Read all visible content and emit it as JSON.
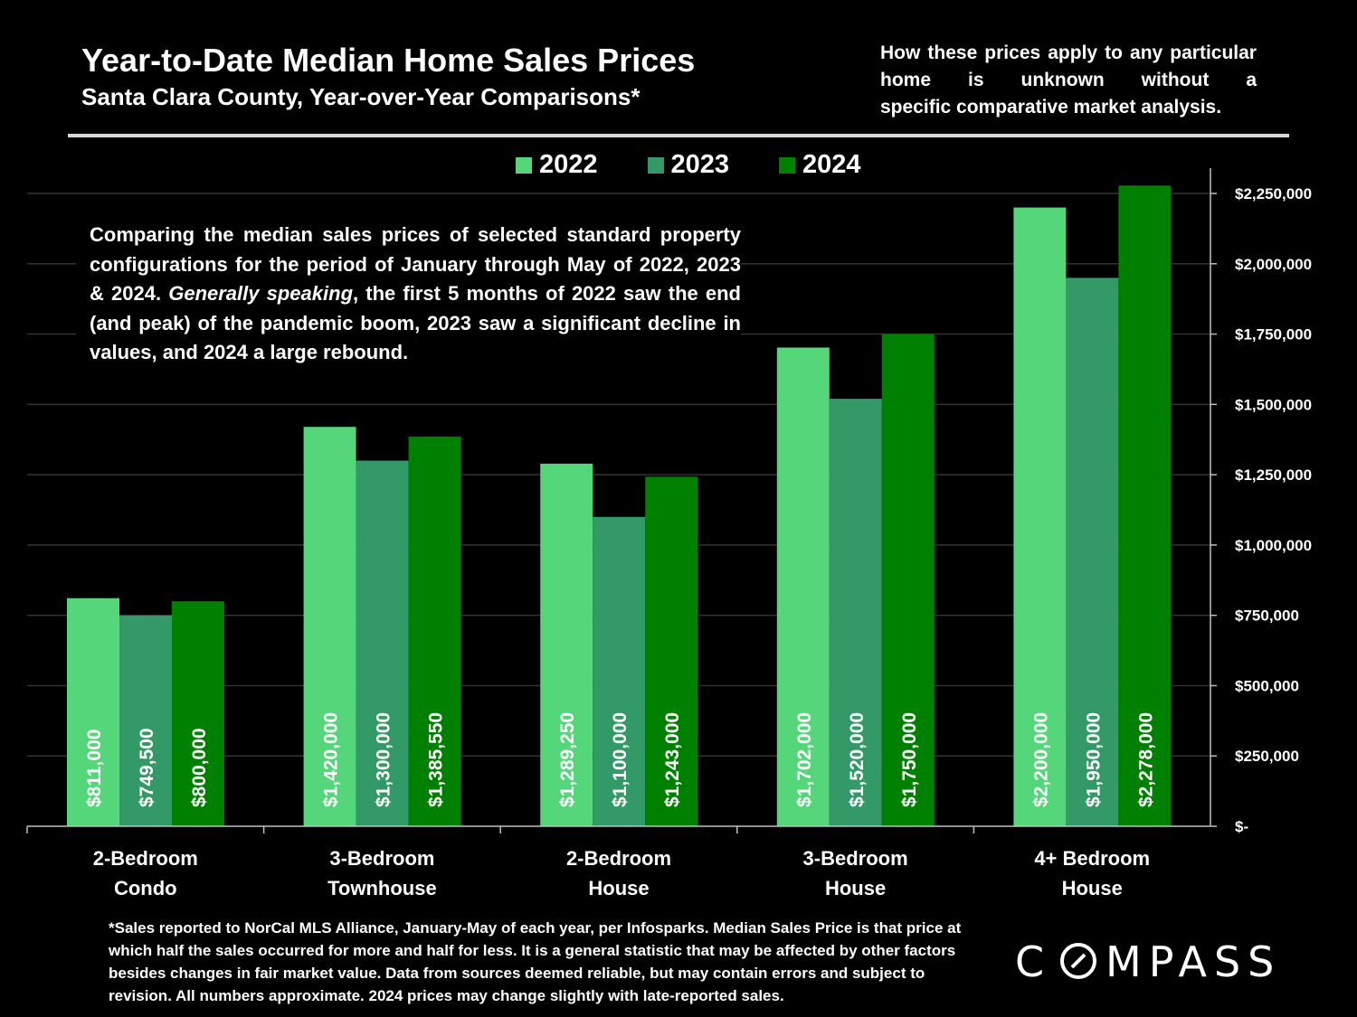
{
  "header": {
    "title": "Year-to-Date Median Home Sales Prices",
    "subtitle": "Santa Clara County, Year-over-Year Comparisons*",
    "disclaimer_lines": [
      "How these prices apply to any",
      "particular home is unknown without a",
      "specific comparative market analysis."
    ]
  },
  "intro": {
    "part1": "Comparing the median sales prices of selected standard property configurations for the period of January through May of 2022, 2023 & 2024. ",
    "italic": "Generally speaking",
    "part2": ", the first 5 months of 2022 saw the end (and peak) of the pandemic boom, 2023 saw a significant decline in values, and 2024 a large rebound."
  },
  "footnote": "*Sales reported to NorCal MLS Alliance, January-May of each year, per Infosparks. Median Sales Price is that price at which half the sales occurred for more and half for less. It is a general statistic that may be affected by other factors besides changes in fair market value. Data from sources deemed reliable, but may contain errors and subject to revision.  All numbers approximate. 2024 prices may change slightly with late-reported sales.",
  "logo": {
    "text": "COMPASS",
    "icon": "compass-logo"
  },
  "chart_data": {
    "type": "bar",
    "categories": [
      [
        "2-Bedroom",
        "Condo"
      ],
      [
        "3-Bedroom",
        "Townhouse"
      ],
      [
        "2-Bedroom",
        "House"
      ],
      [
        "3-Bedroom",
        "House"
      ],
      [
        "4+ Bedroom",
        "House"
      ]
    ],
    "series": [
      {
        "name": "2022",
        "color": "#55d67b",
        "values": [
          811000,
          1420000,
          1289250,
          1702000,
          2200000
        ],
        "labels": [
          "$811,000",
          "$1,420,000",
          "$1,289,250",
          "$1,702,000",
          "$2,200,000"
        ]
      },
      {
        "name": "2023",
        "color": "#339966",
        "values": [
          749500,
          1300000,
          1100000,
          1520000,
          1950000
        ],
        "labels": [
          "$749,500",
          "$1,300,000",
          "$1,100,000",
          "$1,520,000",
          "$1,950,000"
        ]
      },
      {
        "name": "2024",
        "color": "#008000",
        "values": [
          800000,
          1385550,
          1243000,
          1750000,
          2278000
        ],
        "labels": [
          "$800,000",
          "$1,385,550",
          "$1,243,000",
          "$1,750,000",
          "$2,278,000"
        ]
      }
    ],
    "ylim": [
      0,
      2250000
    ],
    "yticks": [
      0,
      250000,
      500000,
      750000,
      1000000,
      1250000,
      1500000,
      1750000,
      2000000,
      2250000
    ],
    "ytick_labels": [
      "$-",
      "$250,000",
      "$500,000",
      "$750,000",
      "$1,000,000",
      "$1,250,000",
      "$1,500,000",
      "$1,750,000",
      "$2,000,000",
      "$2,250,000"
    ],
    "y_axis_side": "right",
    "grid": true,
    "legend": "top",
    "data_labels": "inside-bottom-rotated"
  }
}
